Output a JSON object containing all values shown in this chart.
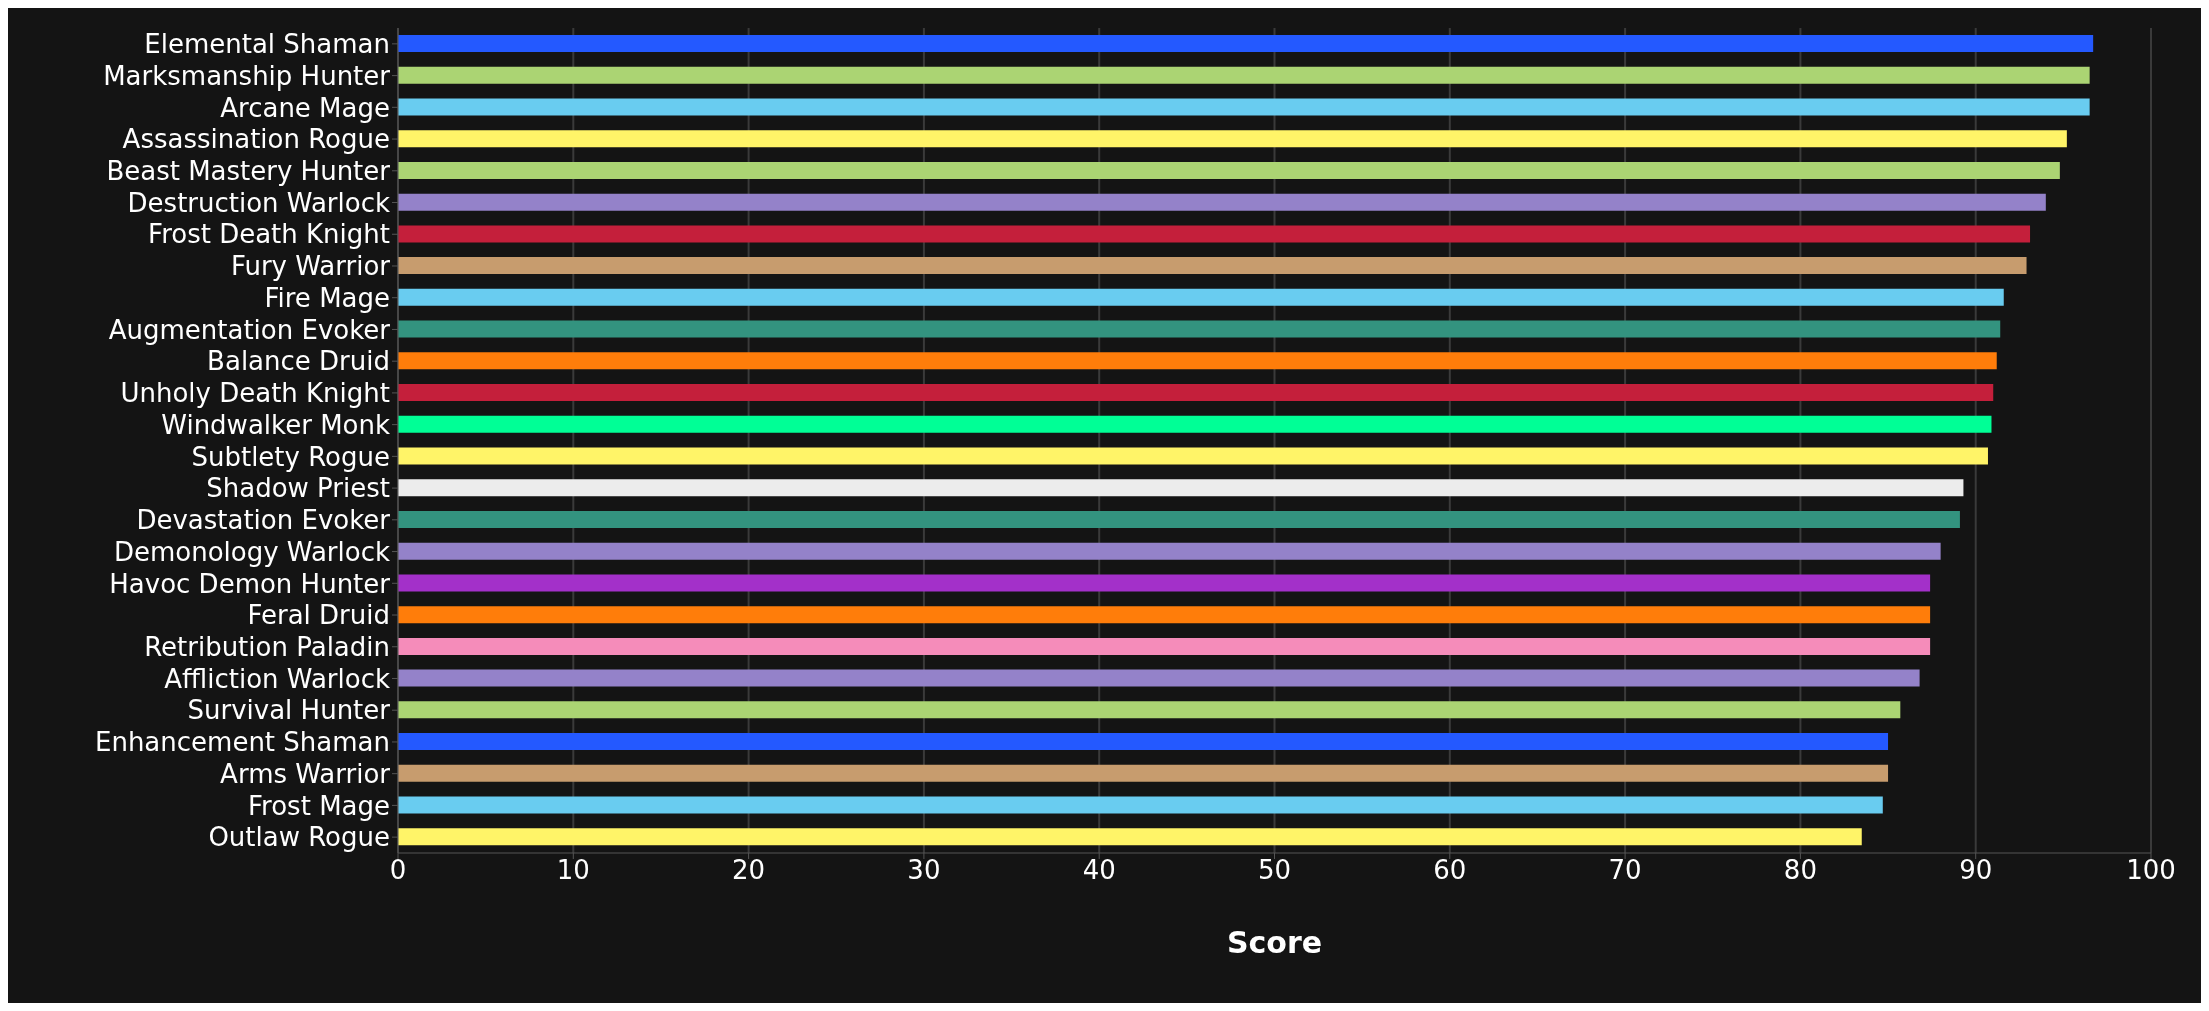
{
  "chart_data": {
    "type": "bar",
    "orientation": "horizontal",
    "xlabel": "Score",
    "categories": [
      "Elemental Shaman",
      "Marksmanship Hunter",
      "Arcane Mage",
      "Assassination Rogue",
      "Beast Mastery Hunter",
      "Destruction Warlock",
      "Frost Death Knight",
      "Fury Warrior",
      "Fire Mage",
      "Augmentation Evoker",
      "Balance Druid",
      "Unholy Death Knight",
      "Windwalker Monk",
      "Subtlety Rogue",
      "Shadow Priest",
      "Devastation Evoker",
      "Demonology Warlock",
      "Havoc Demon Hunter",
      "Feral Druid",
      "Retribution Paladin",
      "Affliction Warlock",
      "Survival Hunter",
      "Enhancement Shaman",
      "Arms Warrior",
      "Frost Mage",
      "Outlaw Rogue"
    ],
    "values": [
      96.7,
      96.5,
      96.5,
      95.2,
      94.8,
      94.0,
      93.1,
      92.9,
      91.6,
      91.4,
      91.2,
      91.0,
      90.9,
      90.7,
      89.3,
      89.1,
      88.0,
      87.4,
      87.4,
      87.4,
      86.8,
      85.7,
      85.0,
      85.0,
      84.7,
      83.5
    ],
    "colors": [
      "#2459ff",
      "#abd473",
      "#69ccf0",
      "#fff468",
      "#abd473",
      "#9482c9",
      "#c41f3b",
      "#c79c6e",
      "#69ccf0",
      "#33937f",
      "#ff7d0a",
      "#c41f3b",
      "#00ff96",
      "#fff468",
      "#ececec",
      "#33937f",
      "#9482c9",
      "#a330c9",
      "#ff7d0a",
      "#f58cba",
      "#9482c9",
      "#abd473",
      "#2459ff",
      "#c79c6e",
      "#69ccf0",
      "#fff468"
    ],
    "xlim": [
      0,
      100
    ],
    "xticks": [
      0,
      10,
      20,
      30,
      40,
      50,
      60,
      70,
      80,
      90,
      100
    ],
    "grid": "x",
    "legend": false
  }
}
